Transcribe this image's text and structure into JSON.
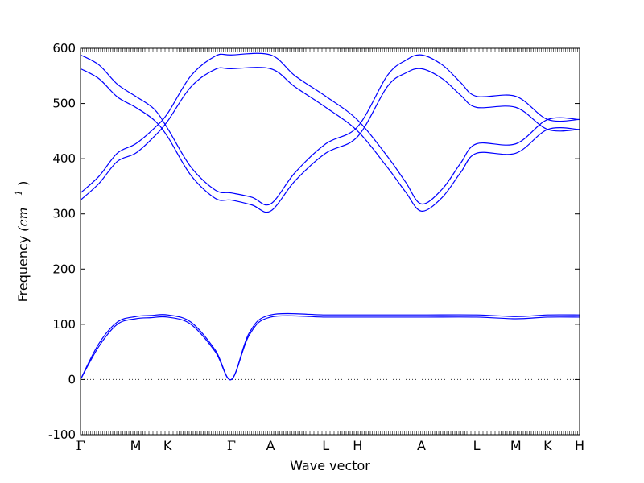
{
  "chart_data": {
    "type": "line",
    "title": "",
    "xlabel": "Wave vector",
    "ylabel": "Frequency",
    "ylabel_math": "(cm",
    "ylabel_sup": "−1",
    "ylabel_close": ")",
    "ylim": [
      -100,
      600
    ],
    "yticks": [
      -100,
      0,
      100,
      200,
      300,
      400,
      500,
      600
    ],
    "grid": false,
    "zero_line": true,
    "colors": {
      "bands": "#0000ff",
      "frame": "#000000",
      "zero": "#333333"
    },
    "xticks": [
      {
        "label": "Γ",
        "pos": 0.0
      },
      {
        "label": "M",
        "pos": 0.9
      },
      {
        "label": "K",
        "pos": 1.42
      },
      {
        "label": "Γ",
        "pos": 2.46
      },
      {
        "label": "A",
        "pos": 3.1
      },
      {
        "label": "L",
        "pos": 4.0
      },
      {
        "label": "H",
        "pos": 4.52
      },
      {
        "label": "A",
        "pos": 5.56
      },
      {
        "label": "L",
        "pos": 6.46
      },
      {
        "label": "M",
        "pos": 7.1
      },
      {
        "label": "K",
        "pos": 7.62
      },
      {
        "label": "H",
        "pos": 8.14
      }
    ],
    "series": [
      {
        "values": [
          [
            0.0,
            0
          ],
          [
            0.3,
            60
          ],
          [
            0.6,
            100
          ],
          [
            0.9,
            110
          ],
          [
            1.15,
            112
          ],
          [
            1.42,
            113
          ],
          [
            1.8,
            100
          ],
          [
            2.2,
            50
          ],
          [
            2.46,
            0
          ],
          [
            2.75,
            80
          ],
          [
            3.1,
            113
          ],
          [
            4.0,
            113
          ],
          [
            4.52,
            113
          ],
          [
            5.56,
            113
          ],
          [
            6.46,
            113
          ],
          [
            7.1,
            110
          ],
          [
            7.62,
            113
          ],
          [
            8.14,
            113
          ]
        ]
      },
      {
        "values": [
          [
            0.0,
            0
          ],
          [
            0.3,
            65
          ],
          [
            0.6,
            104
          ],
          [
            0.9,
            114
          ],
          [
            1.15,
            116
          ],
          [
            1.42,
            117
          ],
          [
            1.8,
            104
          ],
          [
            2.2,
            53
          ],
          [
            2.46,
            0
          ],
          [
            2.75,
            84
          ],
          [
            3.1,
            117
          ],
          [
            4.0,
            117
          ],
          [
            4.52,
            117
          ],
          [
            5.56,
            117
          ],
          [
            6.46,
            117
          ],
          [
            7.1,
            114
          ],
          [
            7.62,
            117
          ],
          [
            8.14,
            117
          ]
        ]
      },
      {
        "values": [
          [
            0.0,
            325
          ],
          [
            0.3,
            355
          ],
          [
            0.6,
            395
          ],
          [
            0.9,
            410
          ],
          [
            1.2,
            440
          ],
          [
            1.42,
            468
          ],
          [
            1.8,
            530
          ],
          [
            2.2,
            562
          ],
          [
            2.46,
            563
          ],
          [
            3.1,
            563
          ],
          [
            3.5,
            530
          ],
          [
            4.0,
            493
          ],
          [
            4.52,
            450
          ],
          [
            5.0,
            385
          ],
          [
            5.3,
            340
          ],
          [
            5.56,
            305
          ],
          [
            5.9,
            330
          ],
          [
            6.2,
            375
          ],
          [
            6.46,
            410
          ],
          [
            7.1,
            410
          ],
          [
            7.62,
            453
          ],
          [
            8.14,
            453
          ]
        ]
      },
      {
        "values": [
          [
            0.0,
            338
          ],
          [
            0.3,
            368
          ],
          [
            0.6,
            410
          ],
          [
            0.9,
            427
          ],
          [
            1.2,
            455
          ],
          [
            1.42,
            482
          ],
          [
            1.8,
            550
          ],
          [
            2.2,
            586
          ],
          [
            2.46,
            588
          ],
          [
            3.1,
            588
          ],
          [
            3.5,
            550
          ],
          [
            4.0,
            513
          ],
          [
            4.52,
            470
          ],
          [
            5.0,
            405
          ],
          [
            5.3,
            358
          ],
          [
            5.56,
            318
          ],
          [
            5.9,
            345
          ],
          [
            6.2,
            392
          ],
          [
            6.46,
            427
          ],
          [
            7.1,
            427
          ],
          [
            7.62,
            471
          ],
          [
            8.14,
            471
          ]
        ]
      },
      {
        "values": [
          [
            0.0,
            563
          ],
          [
            0.3,
            545
          ],
          [
            0.6,
            512
          ],
          [
            0.9,
            493
          ],
          [
            1.2,
            470
          ],
          [
            1.42,
            440
          ],
          [
            1.8,
            370
          ],
          [
            2.2,
            328
          ],
          [
            2.46,
            325
          ],
          [
            2.8,
            316
          ],
          [
            3.1,
            305
          ],
          [
            3.5,
            360
          ],
          [
            4.0,
            410
          ],
          [
            4.52,
            440
          ],
          [
            5.0,
            530
          ],
          [
            5.3,
            555
          ],
          [
            5.56,
            563
          ],
          [
            5.9,
            545
          ],
          [
            6.2,
            515
          ],
          [
            6.46,
            493
          ],
          [
            7.1,
            493
          ],
          [
            7.62,
            453
          ],
          [
            8.14,
            453
          ]
        ]
      },
      {
        "values": [
          [
            0.0,
            588
          ],
          [
            0.3,
            570
          ],
          [
            0.6,
            535
          ],
          [
            0.9,
            513
          ],
          [
            1.2,
            490
          ],
          [
            1.42,
            455
          ],
          [
            1.8,
            385
          ],
          [
            2.2,
            343
          ],
          [
            2.46,
            338
          ],
          [
            2.8,
            330
          ],
          [
            3.1,
            318
          ],
          [
            3.5,
            375
          ],
          [
            4.0,
            427
          ],
          [
            4.52,
            458
          ],
          [
            5.0,
            550
          ],
          [
            5.3,
            578
          ],
          [
            5.56,
            588
          ],
          [
            5.9,
            570
          ],
          [
            6.2,
            538
          ],
          [
            6.46,
            513
          ],
          [
            7.1,
            513
          ],
          [
            7.62,
            471
          ],
          [
            8.14,
            471
          ]
        ]
      }
    ]
  }
}
